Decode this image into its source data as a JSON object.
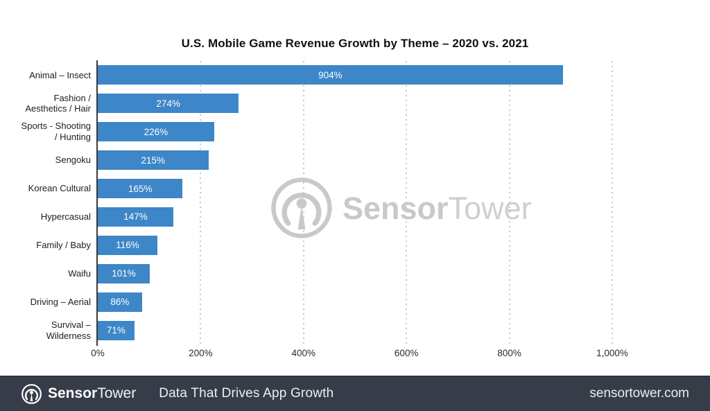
{
  "title": "U.S. Mobile Game Revenue Growth by Theme – 2020 vs. 2021",
  "chart_data": {
    "type": "bar",
    "orientation": "horizontal",
    "title": "U.S. Mobile Game Revenue Growth by Theme – 2020 vs. 2021",
    "categories": [
      "Animal – Insect",
      "Fashion /\nAesthetics / Hair",
      "Sports - Shooting\n/ Hunting",
      "Sengoku",
      "Korean Cultural",
      "Hypercasual",
      "Family / Baby",
      "Waifu",
      "Driving – Aerial",
      "Survival –\nWilderness"
    ],
    "values": [
      904,
      274,
      226,
      215,
      165,
      147,
      116,
      101,
      86,
      71
    ],
    "value_labels": [
      "904%",
      "274%",
      "226%",
      "215%",
      "165%",
      "147%",
      "116%",
      "101%",
      "86%",
      "71%"
    ],
    "xlabel": "",
    "ylabel": "",
    "xlim": [
      0,
      1000
    ],
    "x_ticks": [
      {
        "value": 0,
        "label": "0%"
      },
      {
        "value": 200,
        "label": "200%"
      },
      {
        "value": 400,
        "label": "400%"
      },
      {
        "value": 600,
        "label": "600%"
      },
      {
        "value": 800,
        "label": "800%"
      },
      {
        "value": 1000,
        "label": "1,000%"
      }
    ],
    "gridlines": [
      200,
      400,
      600,
      800,
      1000
    ],
    "grid": true,
    "legend": "none",
    "bar_color": "#3d86c8",
    "value_label_color": "#ffffff"
  },
  "watermark": {
    "brand_bold": "Sensor",
    "brand_light": "Tower",
    "color": "#c9c9c9"
  },
  "footer": {
    "brand_bold": "Sensor",
    "brand_regular": "Tower",
    "tagline": "Data That Drives App Growth",
    "website": "sensortower.com",
    "bg": "#373d48"
  }
}
